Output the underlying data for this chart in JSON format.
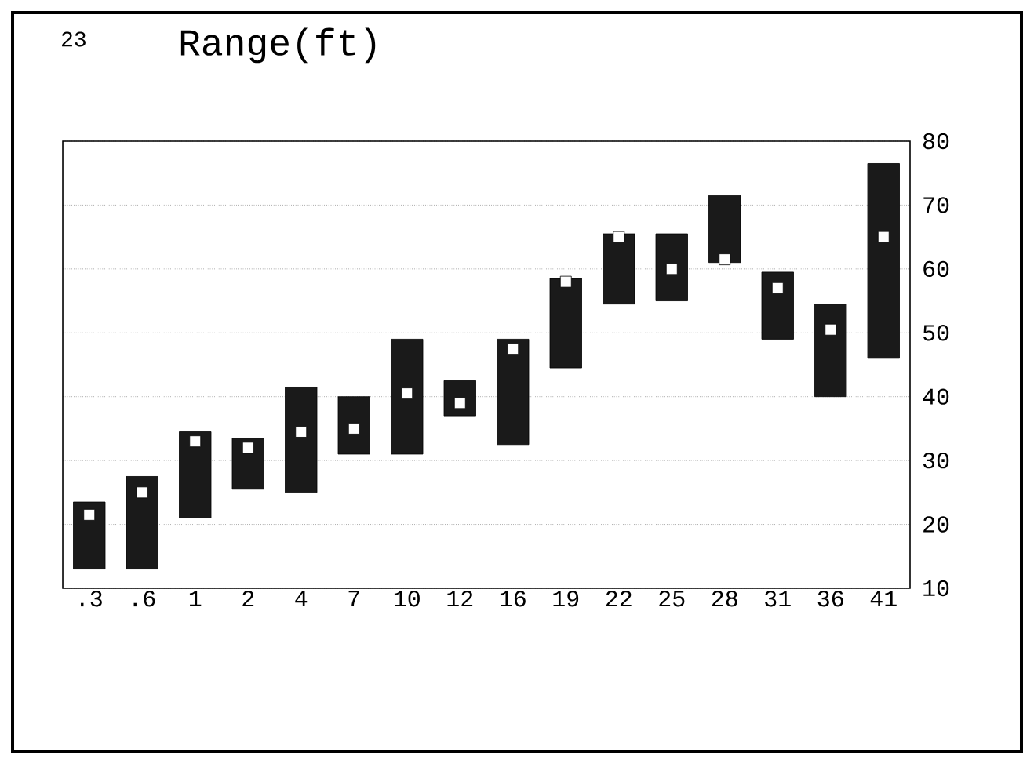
{
  "chart_data": {
    "type": "bar",
    "title": "Range(ft)",
    "annotations": [
      "23"
    ],
    "categories": [
      ".3",
      ".6",
      "1",
      "2",
      "4",
      "7",
      "10",
      "12",
      "16",
      "19",
      "22",
      "25",
      "28",
      "31",
      "36",
      "41"
    ],
    "series": [
      {
        "type": "bar",
        "color": "#1a1a1a",
        "base": [
          13,
          13,
          21,
          25.5,
          25,
          31,
          31,
          37,
          32.5,
          44.5,
          54.5,
          55,
          61,
          49,
          40,
          46
        ],
        "values": [
          10.5,
          14.5,
          13.5,
          8,
          16.5,
          9,
          18,
          5.5,
          16.5,
          14,
          11,
          10.5,
          10.5,
          10.5,
          14.5,
          30.5
        ]
      },
      {
        "type": "scatter",
        "color": "#ffffff",
        "marker": "square",
        "x": [
          ".3",
          ".6",
          "1",
          "2",
          "4",
          "7",
          "10",
          "12",
          "16",
          "19",
          "22",
          "25",
          "28",
          "31",
          "36",
          "41"
        ],
        "values": [
          21.5,
          25,
          33,
          32,
          34.5,
          35,
          40.5,
          39,
          47.5,
          58,
          65,
          60,
          61.5,
          57,
          50.5,
          65
        ]
      }
    ],
    "ylim": [
      10,
      80
    ],
    "yticks": [
      10,
      20,
      30,
      40,
      50,
      60,
      70,
      80
    ],
    "grid": "y"
  }
}
